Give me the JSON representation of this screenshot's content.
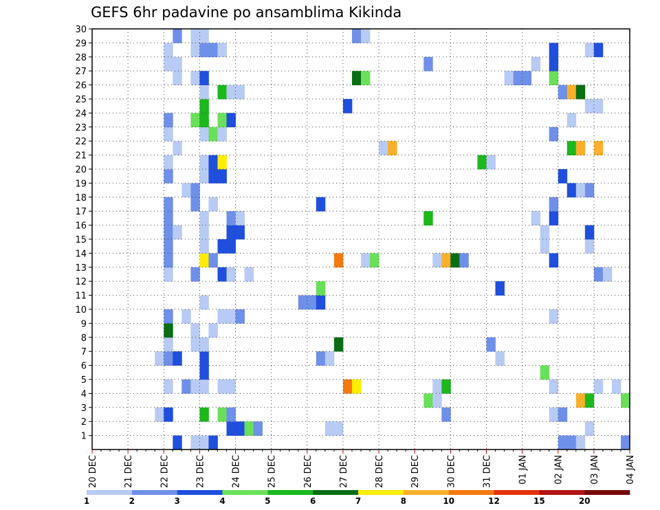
{
  "chart_data": {
    "type": "heatmap",
    "title": "GEFS 6hr padavine po ansamblima Kikinda",
    "x_tick_labels": [
      "20 DEC",
      "21 DEC",
      "22 DEC",
      "23 DEC",
      "24 DEC",
      "25 DEC",
      "26 DEC",
      "27 DEC",
      "28 DEC",
      "29 DEC",
      "30 DEC",
      "31 DEC",
      "01 JAN",
      "02 JAN",
      "03 JAN",
      "04 JAN"
    ],
    "y_tick_labels": [
      "1",
      "2",
      "3",
      "4",
      "5",
      "6",
      "7",
      "8",
      "9",
      "10",
      "11",
      "12",
      "13",
      "14",
      "15",
      "16",
      "17",
      "18",
      "19",
      "20",
      "21",
      "22",
      "23",
      "24",
      "25",
      "26",
      "27",
      "28",
      "29",
      "30"
    ],
    "x_unit": "days since 20 DEC",
    "x_range": [
      0,
      15
    ],
    "y_range": [
      0,
      30
    ],
    "time_step_days": 0.25,
    "grid": true,
    "colorbar": {
      "labels": [
        "1",
        "2",
        "3",
        "4",
        "5",
        "6",
        "7",
        "8",
        "10",
        "12",
        "15",
        "20"
      ],
      "colors": [
        "#b8cbf4",
        "#6f90e8",
        "#1f4fdc",
        "#6ae05a",
        "#1cb81c",
        "#0a6e14",
        "#ffee00",
        "#fbb02c",
        "#f47a10",
        "#e2320a",
        "#b31212",
        "#760808"
      ]
    },
    "cells": [
      [
        2.25,
        0,
        "#1f4fdc"
      ],
      [
        2.75,
        0,
        "#b8cbf4"
      ],
      [
        3.0,
        0,
        "#b8cbf4"
      ],
      [
        3.25,
        0,
        "#1f4fdc"
      ],
      [
        13.0,
        0,
        "#6f90e8"
      ],
      [
        13.25,
        0,
        "#6f90e8"
      ],
      [
        13.5,
        0,
        "#b8cbf4"
      ],
      [
        14.75,
        0,
        "#6f90e8"
      ],
      [
        3.75,
        1,
        "#1f4fdc"
      ],
      [
        4.0,
        1,
        "#1f4fdc"
      ],
      [
        4.25,
        1,
        "#6ae05a"
      ],
      [
        4.5,
        1,
        "#6f90e8"
      ],
      [
        6.5,
        1,
        "#b8cbf4"
      ],
      [
        6.75,
        1,
        "#b8cbf4"
      ],
      [
        13.75,
        1,
        "#b8cbf4"
      ],
      [
        1.75,
        2,
        "#b8cbf4"
      ],
      [
        2.0,
        2,
        "#1f4fdc"
      ],
      [
        3.0,
        2,
        "#1cb81c"
      ],
      [
        3.5,
        2,
        "#6ae05a"
      ],
      [
        3.75,
        2,
        "#6f90e8"
      ],
      [
        9.75,
        2,
        "#6f90e8"
      ],
      [
        12.75,
        2,
        "#b8cbf4"
      ],
      [
        13.0,
        2,
        "#6f90e8"
      ],
      [
        9.25,
        3,
        "#6ae05a"
      ],
      [
        9.5,
        3,
        "#b8cbf4"
      ],
      [
        13.5,
        3,
        "#fbb02c"
      ],
      [
        13.75,
        3,
        "#1cb81c"
      ],
      [
        14.75,
        3,
        "#6ae05a"
      ],
      [
        2.0,
        4,
        "#b8cbf4"
      ],
      [
        2.5,
        4,
        "#6f90e8"
      ],
      [
        2.75,
        4,
        "#b8cbf4"
      ],
      [
        3.0,
        4,
        "#b8cbf4"
      ],
      [
        3.5,
        4,
        "#b8cbf4"
      ],
      [
        3.75,
        4,
        "#b8cbf4"
      ],
      [
        7.0,
        4,
        "#f47a10"
      ],
      [
        7.25,
        4,
        "#ffee00"
      ],
      [
        9.5,
        4,
        "#b8cbf4"
      ],
      [
        9.75,
        4,
        "#1cb81c"
      ],
      [
        12.75,
        4,
        "#b8cbf4"
      ],
      [
        14.0,
        4,
        "#b8cbf4"
      ],
      [
        14.5,
        4,
        "#b8cbf4"
      ],
      [
        3.0,
        5,
        "#1f4fdc"
      ],
      [
        12.5,
        5,
        "#6ae05a"
      ],
      [
        1.75,
        6,
        "#b8cbf4"
      ],
      [
        2.0,
        6,
        "#6f90e8"
      ],
      [
        2.25,
        6,
        "#1f4fdc"
      ],
      [
        3.0,
        6,
        "#1f4fdc"
      ],
      [
        6.25,
        6,
        "#6f90e8"
      ],
      [
        6.5,
        6,
        "#b8cbf4"
      ],
      [
        11.25,
        6,
        "#b8cbf4"
      ],
      [
        2.0,
        7,
        "#b8cbf4"
      ],
      [
        2.75,
        7,
        "#b8cbf4"
      ],
      [
        3.0,
        7,
        "#b8cbf4"
      ],
      [
        6.75,
        7,
        "#0a6e14"
      ],
      [
        11.0,
        7,
        "#6f90e8"
      ],
      [
        2.0,
        8,
        "#0a6e14"
      ],
      [
        2.75,
        8,
        "#b8cbf4"
      ],
      [
        3.25,
        8,
        "#b8cbf4"
      ],
      [
        2.0,
        9,
        "#6f90e8"
      ],
      [
        2.5,
        9,
        "#b8cbf4"
      ],
      [
        3.5,
        9,
        "#b8cbf4"
      ],
      [
        3.75,
        9,
        "#b8cbf4"
      ],
      [
        4.0,
        9,
        "#6f90e8"
      ],
      [
        12.75,
        9,
        "#b8cbf4"
      ],
      [
        3.0,
        10,
        "#b8cbf4"
      ],
      [
        5.75,
        10,
        "#6f90e8"
      ],
      [
        6.0,
        10,
        "#6f90e8"
      ],
      [
        6.25,
        10,
        "#1f4fdc"
      ],
      [
        6.25,
        11,
        "#6ae05a"
      ],
      [
        11.25,
        11,
        "#1f4fdc"
      ],
      [
        2.0,
        12,
        "#b8cbf4"
      ],
      [
        2.75,
        12,
        "#6f90e8"
      ],
      [
        3.5,
        12,
        "#1f4fdc"
      ],
      [
        3.75,
        12,
        "#b8cbf4"
      ],
      [
        4.25,
        12,
        "#b8cbf4"
      ],
      [
        14.0,
        12,
        "#6f90e8"
      ],
      [
        14.25,
        12,
        "#b8cbf4"
      ],
      [
        2.0,
        13,
        "#6f90e8"
      ],
      [
        3.0,
        13,
        "#ffee00"
      ],
      [
        3.25,
        13,
        "#6f90e8"
      ],
      [
        6.75,
        13,
        "#f47a10"
      ],
      [
        7.5,
        13,
        "#b8cbf4"
      ],
      [
        7.75,
        13,
        "#6ae05a"
      ],
      [
        9.5,
        13,
        "#b8cbf4"
      ],
      [
        9.75,
        13,
        "#fbb02c"
      ],
      [
        10.0,
        13,
        "#0a6e14"
      ],
      [
        10.25,
        13,
        "#6f90e8"
      ],
      [
        12.75,
        13,
        "#1f4fdc"
      ],
      [
        2.0,
        14,
        "#6f90e8"
      ],
      [
        3.0,
        14,
        "#b8cbf4"
      ],
      [
        3.5,
        14,
        "#1f4fdc"
      ],
      [
        3.75,
        14,
        "#1f4fdc"
      ],
      [
        12.5,
        14,
        "#b8cbf4"
      ],
      [
        13.75,
        14,
        "#b8cbf4"
      ],
      [
        2.0,
        15,
        "#6f90e8"
      ],
      [
        2.25,
        15,
        "#b8cbf4"
      ],
      [
        3.0,
        15,
        "#b8cbf4"
      ],
      [
        3.75,
        15,
        "#1f4fdc"
      ],
      [
        4.0,
        15,
        "#1f4fdc"
      ],
      [
        12.5,
        15,
        "#b8cbf4"
      ],
      [
        13.75,
        15,
        "#1f4fdc"
      ],
      [
        2.0,
        16,
        "#6f90e8"
      ],
      [
        3.0,
        16,
        "#b8cbf4"
      ],
      [
        3.75,
        16,
        "#6f90e8"
      ],
      [
        4.0,
        16,
        "#b8cbf4"
      ],
      [
        9.25,
        16,
        "#1cb81c"
      ],
      [
        12.25,
        16,
        "#b8cbf4"
      ],
      [
        12.75,
        16,
        "#1f4fdc"
      ],
      [
        2.0,
        17,
        "#6f90e8"
      ],
      [
        2.75,
        17,
        "#6f90e8"
      ],
      [
        3.25,
        17,
        "#b8cbf4"
      ],
      [
        6.25,
        17,
        "#1f4fdc"
      ],
      [
        12.75,
        17,
        "#6f90e8"
      ],
      [
        2.5,
        18,
        "#b8cbf4"
      ],
      [
        2.75,
        18,
        "#6f90e8"
      ],
      [
        13.25,
        18,
        "#1f4fdc"
      ],
      [
        13.5,
        18,
        "#b8cbf4"
      ],
      [
        13.75,
        18,
        "#6f90e8"
      ],
      [
        2.0,
        19,
        "#6f90e8"
      ],
      [
        3.0,
        19,
        "#b8cbf4"
      ],
      [
        3.25,
        19,
        "#1f4fdc"
      ],
      [
        3.5,
        19,
        "#1f4fdc"
      ],
      [
        13.0,
        19,
        "#1f4fdc"
      ],
      [
        2.0,
        20,
        "#b8cbf4"
      ],
      [
        3.0,
        20,
        "#b8cbf4"
      ],
      [
        3.25,
        20,
        "#1f4fdc"
      ],
      [
        3.5,
        20,
        "#ffee00"
      ],
      [
        10.75,
        20,
        "#1cb81c"
      ],
      [
        11.0,
        20,
        "#b8cbf4"
      ],
      [
        2.25,
        21,
        "#b8cbf4"
      ],
      [
        8.0,
        21,
        "#b8cbf4"
      ],
      [
        8.25,
        21,
        "#fbb02c"
      ],
      [
        13.25,
        21,
        "#1cb81c"
      ],
      [
        13.5,
        21,
        "#fbb02c"
      ],
      [
        14.0,
        21,
        "#fbb02c"
      ],
      [
        2.0,
        22,
        "#b8cbf4"
      ],
      [
        3.0,
        22,
        "#b8cbf4"
      ],
      [
        3.25,
        22,
        "#6ae05a"
      ],
      [
        3.5,
        22,
        "#b8cbf4"
      ],
      [
        12.75,
        22,
        "#6f90e8"
      ],
      [
        2.0,
        23,
        "#6f90e8"
      ],
      [
        2.75,
        23,
        "#6ae05a"
      ],
      [
        3.0,
        23,
        "#1cb81c"
      ],
      [
        3.5,
        23,
        "#6ae05a"
      ],
      [
        3.75,
        23,
        "#1f4fdc"
      ],
      [
        13.25,
        23,
        "#b8cbf4"
      ],
      [
        3.0,
        24,
        "#1cb81c"
      ],
      [
        7.0,
        24,
        "#1f4fdc"
      ],
      [
        13.75,
        24,
        "#b8cbf4"
      ],
      [
        14.0,
        24,
        "#b8cbf4"
      ],
      [
        3.0,
        25,
        "#b8cbf4"
      ],
      [
        3.5,
        25,
        "#1cb81c"
      ],
      [
        3.75,
        25,
        "#b8cbf4"
      ],
      [
        4.0,
        25,
        "#b8cbf4"
      ],
      [
        13.0,
        25,
        "#6f90e8"
      ],
      [
        13.25,
        25,
        "#fbb02c"
      ],
      [
        13.5,
        25,
        "#0a6e14"
      ],
      [
        2.25,
        26,
        "#b8cbf4"
      ],
      [
        2.75,
        26,
        "#b8cbf4"
      ],
      [
        3.0,
        26,
        "#1f4fdc"
      ],
      [
        7.25,
        26,
        "#0a6e14"
      ],
      [
        7.5,
        26,
        "#6ae05a"
      ],
      [
        11.5,
        26,
        "#b8cbf4"
      ],
      [
        11.75,
        26,
        "#6f90e8"
      ],
      [
        12.0,
        26,
        "#6f90e8"
      ],
      [
        12.75,
        26,
        "#6ae05a"
      ],
      [
        2.0,
        27,
        "#b8cbf4"
      ],
      [
        2.25,
        27,
        "#b8cbf4"
      ],
      [
        9.25,
        27,
        "#6f90e8"
      ],
      [
        12.25,
        27,
        "#b8cbf4"
      ],
      [
        12.75,
        27,
        "#1f4fdc"
      ],
      [
        2.0,
        28,
        "#b8cbf4"
      ],
      [
        2.75,
        28,
        "#b8cbf4"
      ],
      [
        3.0,
        28,
        "#6f90e8"
      ],
      [
        3.25,
        28,
        "#6f90e8"
      ],
      [
        3.5,
        28,
        "#b8cbf4"
      ],
      [
        12.75,
        28,
        "#1f4fdc"
      ],
      [
        13.75,
        28,
        "#b8cbf4"
      ],
      [
        14.0,
        28,
        "#1f4fdc"
      ],
      [
        2.25,
        29,
        "#6f90e8"
      ],
      [
        2.75,
        29,
        "#b8cbf4"
      ],
      [
        3.0,
        29,
        "#b8cbf4"
      ],
      [
        7.25,
        29,
        "#6f90e8"
      ],
      [
        7.5,
        29,
        "#b8cbf4"
      ]
    ]
  }
}
